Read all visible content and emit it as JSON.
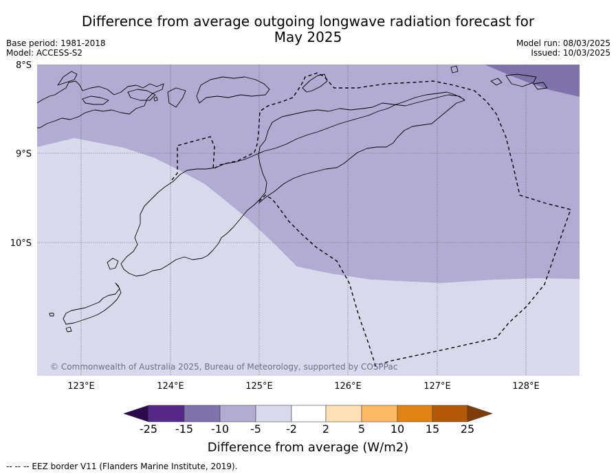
{
  "title_line1": "Difference from average outgoing longwave radiation forecast for",
  "title_line2": "May 2025",
  "meta_left": {
    "base_period": "Base period: 1981-2018",
    "model": "Model: ACCESS-S2"
  },
  "meta_right": {
    "model_run": "Model run: 08/03/2025",
    "issued": "Issued: 10/03/2025"
  },
  "map": {
    "lat_labels": [
      "8°S",
      "9°S",
      "10°S"
    ],
    "lon_labels": [
      "123°E",
      "124°E",
      "125°E",
      "126°E",
      "127°E",
      "128°E"
    ],
    "copyright": "© Commonwealth of Australia 2025, Bureau of Meteorology, supported by COSPPac"
  },
  "colorbar": {
    "title": "Difference from average (W/m2)",
    "tick_labels": [
      "-25",
      "-15",
      "-10",
      "-5",
      "-2",
      "2",
      "5",
      "10",
      "15",
      "25"
    ],
    "colors": {
      "below_-25": "#2d0a4e",
      "-25_-15": "#542788",
      "-15_-10": "#8073ac",
      "-10_-5": "#b2abd2",
      "-5_-2": "#d8daeb",
      "-2_2": "#ffffff",
      "2_5": "#fee0b6",
      "5_10": "#fdb863",
      "10_15": "#e08214",
      "15_25": "#b35806",
      "above_25": "#7f3b08"
    }
  },
  "footnote": "-- -- -- EEZ border V11 (Flanders Marine Institute, 2019)."
}
